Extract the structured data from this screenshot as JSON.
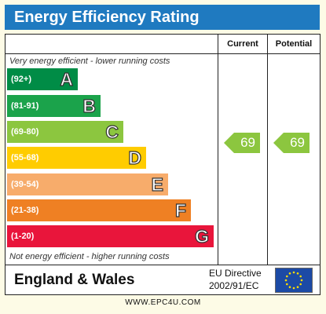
{
  "title": "Energy Efficiency Rating",
  "columns": {
    "current": "Current",
    "potential": "Potential"
  },
  "top_note": "Very energy efficient - lower running costs",
  "bottom_note": "Not energy efficient - higher running costs",
  "bands": [
    {
      "range": "(92+)",
      "letter": "A",
      "color": "#008c46"
    },
    {
      "range": "(81-91)",
      "letter": "B",
      "color": "#1ba34b"
    },
    {
      "range": "(69-80)",
      "letter": "C",
      "color": "#8cc63f"
    },
    {
      "range": "(55-68)",
      "letter": "D",
      "color": "#ffcc00"
    },
    {
      "range": "(39-54)",
      "letter": "E",
      "color": "#f7ac6b"
    },
    {
      "range": "(21-38)",
      "letter": "F",
      "color": "#ef8023"
    },
    {
      "range": "(1-20)",
      "letter": "G",
      "color": "#e9153b"
    }
  ],
  "current_rating": "69",
  "potential_rating": "69",
  "region": "England & Wales",
  "directive_line1": "EU Directive",
  "directive_line2": "2002/91/EC",
  "watermark": "WWW.EPC4U.COM"
}
